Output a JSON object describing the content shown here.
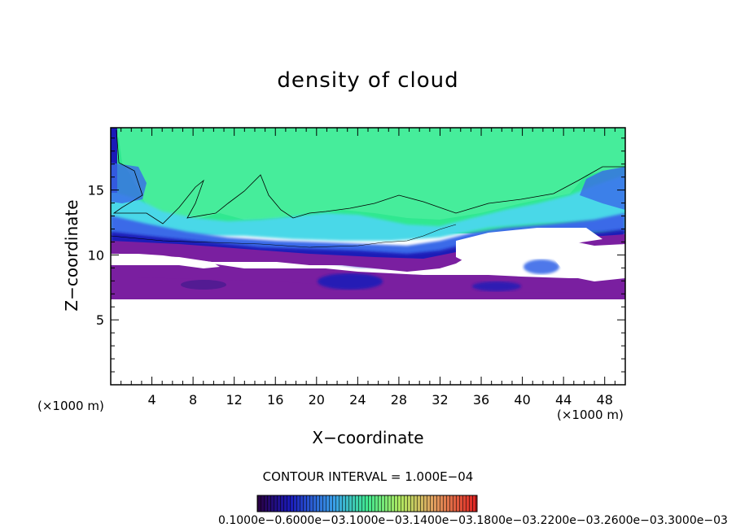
{
  "chart_data": {
    "type": "heatmap",
    "title": "density of cloud",
    "xlabel": "X−coordinate",
    "ylabel": "Z−coordinate",
    "x_unit_left": "(×1000 m)",
    "x_unit_right": "(×1000 m)",
    "xlim": [
      0,
      50
    ],
    "ylim": [
      0,
      19.8
    ],
    "x_ticks": [
      4,
      8,
      12,
      16,
      20,
      24,
      28,
      32,
      36,
      40,
      44,
      48
    ],
    "y_ticks": [
      5,
      10,
      15
    ],
    "contour_interval": "CONTOUR INTERVAL = 1.000E−04",
    "colorbar_labels": "0.1000e−0.6000e−03.1000e−03.1400e−03.1800e−03.2200e−03.2600e−03.3000e−03",
    "colors": {
      "purple": "#7a1fa0",
      "deep_blue": "#1a1ab8",
      "blue": "#3a6ae8",
      "cyan": "#4ad8e8",
      "green": "#30e890",
      "light_green": "#50f0a0"
    }
  }
}
